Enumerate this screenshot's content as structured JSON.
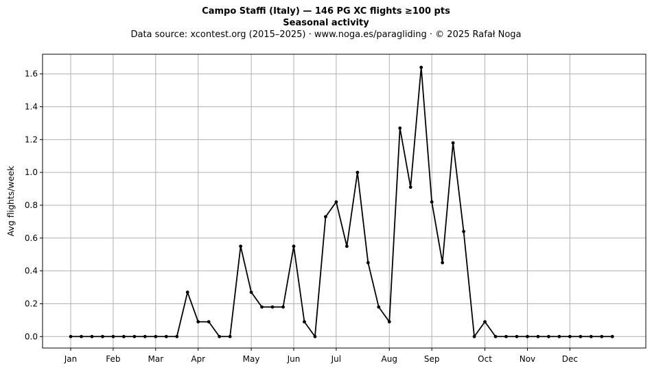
{
  "chart_data": {
    "type": "line",
    "title": "Campo Staffi (Italy)  —  146 PG XC flights ≥100 pts",
    "subtitle": "Seasonal activity",
    "source_note": "Data source: xcontest.org (2015–2025)  ·  www.noga.es/paragliding  ·  © 2025 Rafał Noga",
    "xlabel": "",
    "ylabel": "Avg flights/week",
    "ylim": [
      -0.07,
      1.72
    ],
    "grid": true,
    "x_tick_labels": [
      "Jan",
      "Feb",
      "Mar",
      "Apr",
      "May",
      "Jun",
      "Jul",
      "Aug",
      "Sep",
      "Oct",
      "Nov",
      "Dec"
    ],
    "x_tick_weeks": [
      1,
      5,
      9,
      13,
      18,
      22,
      26,
      31,
      35,
      40,
      44,
      48
    ],
    "y_ticks": [
      0.0,
      0.2,
      0.4,
      0.6,
      0.8,
      1.0,
      1.2,
      1.4,
      1.6
    ],
    "y_tick_labels": [
      "0.0",
      "0.2",
      "0.4",
      "0.6",
      "0.8",
      "1.0",
      "1.2",
      "1.4",
      "1.6"
    ],
    "series": [
      {
        "color": "#000000",
        "x": [
          1,
          2,
          3,
          4,
          5,
          6,
          7,
          8,
          9,
          10,
          11,
          12,
          13,
          14,
          15,
          16,
          17,
          18,
          19,
          20,
          21,
          22,
          23,
          24,
          25,
          26,
          27,
          28,
          29,
          30,
          31,
          32,
          33,
          34,
          35,
          36,
          37,
          38,
          39,
          40,
          41,
          42,
          43,
          44,
          45,
          46,
          47,
          48,
          49,
          50,
          51,
          52
        ],
        "values": [
          0,
          0,
          0,
          0,
          0,
          0,
          0,
          0,
          0,
          0,
          0,
          0.27,
          0.09,
          0.09,
          0,
          0,
          0.55,
          0.27,
          0.18,
          0.18,
          0.18,
          0.55,
          0.09,
          0,
          0.73,
          0.82,
          0.55,
          1.0,
          0.45,
          0.18,
          0.09,
          1.27,
          0.91,
          1.64,
          0.82,
          0.45,
          1.18,
          0.64,
          0,
          0.09,
          0,
          0,
          0,
          0,
          0,
          0,
          0,
          0,
          0,
          0,
          0,
          0
        ]
      }
    ]
  }
}
